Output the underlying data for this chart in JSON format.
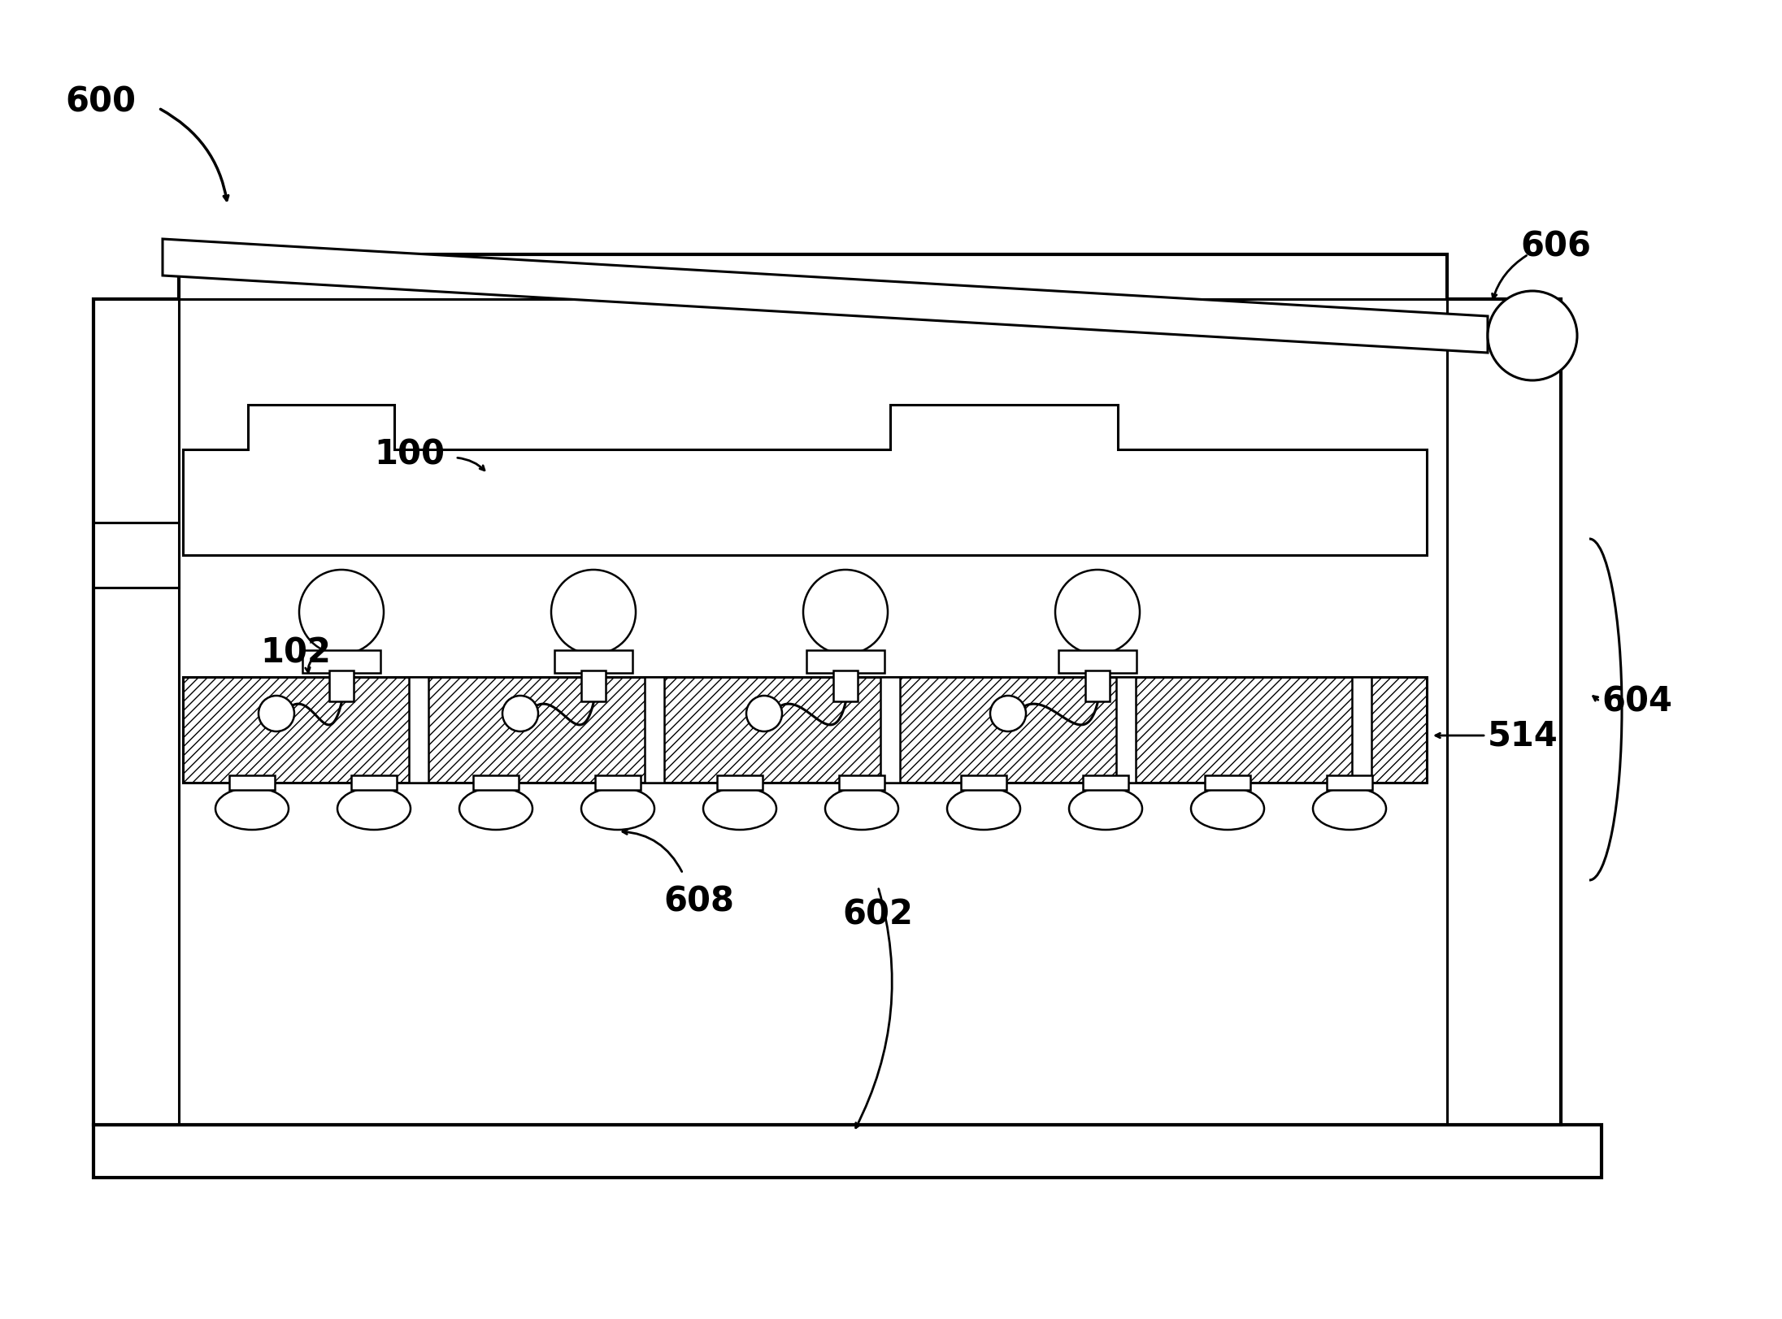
{
  "bg_color": "#ffffff",
  "line_color": "#000000",
  "figsize": [
    21.92,
    16.24
  ],
  "dpi": 100,
  "lw_thick": 3.0,
  "lw_med": 2.2,
  "lw_thin": 1.8,
  "label_fontsize": 30
}
